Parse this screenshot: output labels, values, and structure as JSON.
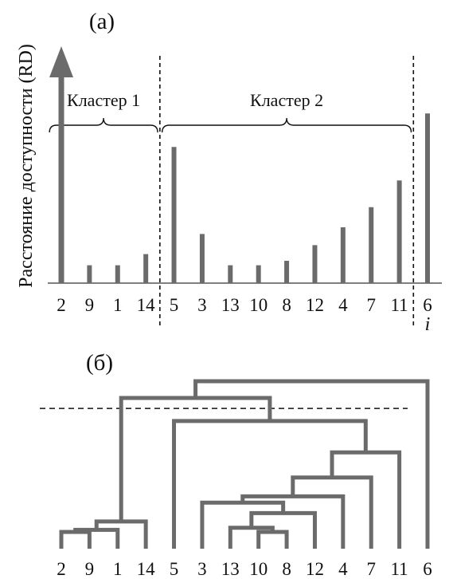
{
  "chart_data": [
    {
      "type": "bar",
      "panel_label": "(а)",
      "ylabel": "Расстояние доступности (RD)",
      "xlabel": "i",
      "categories": [
        "2",
        "9",
        "1",
        "14",
        "5",
        "3",
        "13",
        "10",
        "8",
        "12",
        "4",
        "7",
        "11",
        "6"
      ],
      "values": [
        100,
        8,
        8,
        13,
        61,
        22,
        8,
        8,
        10,
        17,
        25,
        34,
        46,
        76
      ],
      "first_value_infinite": true,
      "ylim": [
        0,
        100
      ],
      "grid": false,
      "bar_color": "#6b6b6b",
      "clusters": [
        {
          "label": "Кластер 1",
          "from": 0,
          "to": 3
        },
        {
          "label": "Кластер 2",
          "from": 4,
          "to": 12
        }
      ]
    },
    {
      "type": "dendrogram",
      "panel_label": "(б)",
      "leaves": [
        "2",
        "9",
        "1",
        "14",
        "5",
        "3",
        "13",
        "10",
        "8",
        "12",
        "4",
        "7",
        "11",
        "6"
      ],
      "merges": [
        {
          "children": [
            "L0",
            "L1"
          ],
          "height": 8
        },
        {
          "children": [
            "M0",
            "L2"
          ],
          "height": 9
        },
        {
          "children": [
            "M1",
            "L3"
          ],
          "height": 13
        },
        {
          "children": [
            "L7",
            "L8"
          ],
          "height": 8
        },
        {
          "children": [
            "L6",
            "M3"
          ],
          "height": 10
        },
        {
          "children": [
            "M4",
            "L9"
          ],
          "height": 17
        },
        {
          "children": [
            "L5",
            "M5"
          ],
          "height": 22
        },
        {
          "children": [
            "M6",
            "L10"
          ],
          "height": 25
        },
        {
          "children": [
            "M7",
            "L11"
          ],
          "height": 34
        },
        {
          "children": [
            "M8",
            "L12"
          ],
          "height": 46
        },
        {
          "children": [
            "L4",
            "M9"
          ],
          "height": 61
        },
        {
          "children": [
            "M2",
            "M10"
          ],
          "height": 72
        },
        {
          "children": [
            "M11",
            "L13"
          ],
          "height": 80
        }
      ],
      "cut_height": 67,
      "line_color": "#6b6b6b"
    }
  ]
}
